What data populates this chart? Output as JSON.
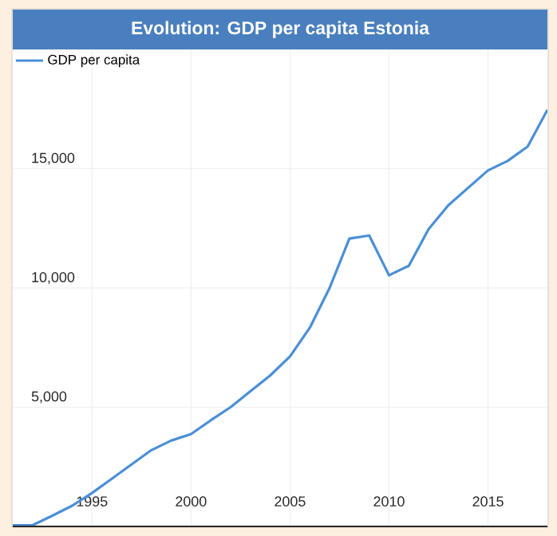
{
  "chart_data": {
    "type": "line",
    "title": "Evolution: GDP per capita Estonia",
    "x": [
      1991,
      1992,
      1993,
      1994,
      1995,
      1996,
      1997,
      1998,
      1999,
      2000,
      2001,
      2002,
      2003,
      2004,
      2005,
      2006,
      2007,
      2008,
      2009,
      2010,
      2011,
      2012,
      2013,
      2014,
      2015,
      2016,
      2017,
      2018
    ],
    "series": [
      {
        "name": "GDP per capita",
        "color": "#4a8fd6",
        "values": [
          50,
          50,
          450,
          870,
          1400,
          2000,
          2600,
          3200,
          3600,
          3870,
          4450,
          5000,
          5670,
          6330,
          7130,
          8330,
          10000,
          12070,
          12200,
          10530,
          10930,
          12470,
          13470,
          14200,
          14930,
          15330,
          15930,
          17470
        ]
      }
    ],
    "xlim": [
      1991,
      2018
    ],
    "ylim": [
      0,
      20000
    ],
    "xticks": [
      1995,
      2000,
      2005,
      2010,
      2015
    ],
    "yticks": [
      {
        "value": 5000,
        "label": "5,000"
      },
      {
        "value": 10000,
        "label": "10,000"
      },
      {
        "value": 15000,
        "label": "15,000"
      }
    ],
    "grid": true,
    "legend": "top left",
    "marker": "none",
    "line_style": "solid"
  }
}
